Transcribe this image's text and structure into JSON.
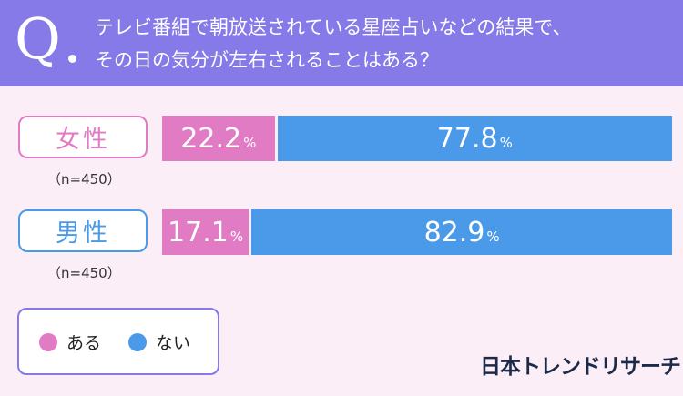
{
  "header": {
    "q_mark": "Q",
    "question_lines": [
      "テレビ番組で朝放送されている星座占いなどの結果で、",
      "その日の気分が左右されることはある？"
    ]
  },
  "chart_data": {
    "type": "bar",
    "stacked": true,
    "orientation": "horizontal",
    "title": "テレビ番組で朝放送されている星座占いなどの結果で、その日の気分が左右されることはある？",
    "categories": [
      "女性",
      "男性"
    ],
    "sample_notes": [
      "（n=450）",
      "（n=450）"
    ],
    "series": [
      {
        "name": "ある",
        "color": "#e07bc4",
        "values": [
          22.2,
          17.1
        ]
      },
      {
        "name": "ない",
        "color": "#4a9ae9",
        "values": [
          77.8,
          82.9
        ]
      }
    ],
    "unit": "%",
    "xlim": [
      0,
      100
    ]
  },
  "legend": {
    "items": [
      {
        "label": "ある",
        "color": "#e07bc4"
      },
      {
        "label": "ない",
        "color": "#4a9ae9"
      }
    ]
  },
  "brand": "日本トレンドリサーチ"
}
